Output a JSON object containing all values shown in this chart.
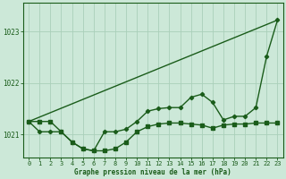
{
  "title": "Graphe pression niveau de la mer (hPa)",
  "background_color": "#cce8d8",
  "grid_color": "#aacfba",
  "line_color": "#1a5c1a",
  "x_ticks": [
    0,
    1,
    2,
    3,
    4,
    5,
    6,
    7,
    8,
    9,
    10,
    11,
    12,
    13,
    14,
    15,
    16,
    17,
    18,
    19,
    20,
    21,
    22,
    23
  ],
  "y_ticks": [
    1021,
    1022,
    1023
  ],
  "xlim": [
    -0.5,
    23.5
  ],
  "ylim": [
    1020.55,
    1023.55
  ],
  "series1_x": [
    0,
    1,
    2,
    3,
    4,
    5,
    6,
    7,
    8,
    9,
    10,
    11,
    12,
    13,
    14,
    15,
    16,
    17,
    18,
    19,
    20,
    21,
    22,
    23
  ],
  "series1_y": [
    1021.25,
    1021.25,
    1021.25,
    1021.05,
    1020.85,
    1020.72,
    1020.68,
    1020.68,
    1020.72,
    1020.85,
    1021.05,
    1021.15,
    1021.2,
    1021.22,
    1021.22,
    1021.2,
    1021.18,
    1021.12,
    1021.18,
    1021.2,
    1021.2,
    1021.22,
    1021.22,
    1021.22
  ],
  "series2_x": [
    0,
    1,
    2,
    3,
    4,
    5,
    6,
    7,
    8,
    9,
    10,
    11,
    12,
    13,
    14,
    15,
    16,
    17,
    18,
    19,
    20,
    21,
    22,
    23
  ],
  "series2_y": [
    1021.25,
    1021.05,
    1021.05,
    1021.05,
    1020.85,
    1020.72,
    1020.68,
    1021.05,
    1021.05,
    1021.1,
    1021.25,
    1021.45,
    1021.5,
    1021.52,
    1021.52,
    1021.72,
    1021.78,
    1021.62,
    1021.28,
    1021.35,
    1021.35,
    1021.52,
    1022.52,
    1023.22
  ],
  "series3_x": [
    0,
    23
  ],
  "series3_y": [
    1021.25,
    1023.22
  ],
  "tick_fontsize": 5.0,
  "label_fontsize": 5.5,
  "linewidth": 1.0,
  "markersize": 2.2
}
